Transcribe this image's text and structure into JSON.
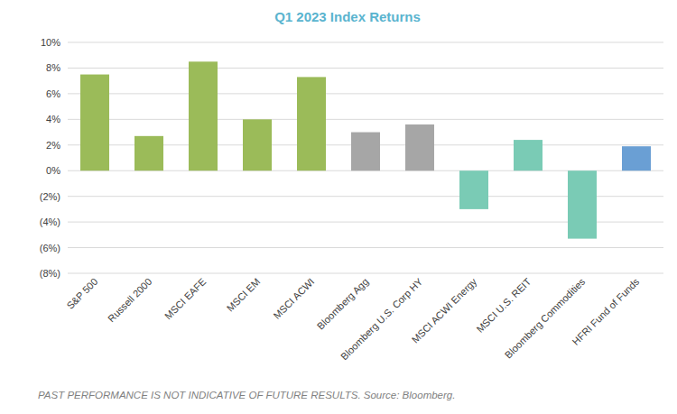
{
  "chart_data": {
    "type": "bar",
    "title": "Q1 2023 Index Returns",
    "note": "PAST PERFORMANCE IS NOT INDICATIVE OF FUTURE RESULTS. Source: Bloomberg.",
    "categories": [
      "S&P 500",
      "Russell 2000",
      "MSCI EAFE",
      "MSCI EM",
      "MSCI ACWI",
      "Bloomberg Agg",
      "Bloomberg U.S. Corp HY",
      "MSCI ACWI Energy",
      "MSCI U.S. REIT",
      "Bloomberg Commodities",
      "HFRI Fund of Funds"
    ],
    "values": [
      7.5,
      2.7,
      8.5,
      4.0,
      7.3,
      3.0,
      3.6,
      -3.0,
      2.4,
      -5.3,
      1.9
    ],
    "colors": [
      "#9bbb59",
      "#9bbb59",
      "#9bbb59",
      "#9bbb59",
      "#9bbb59",
      "#a6a6a6",
      "#a6a6a6",
      "#7acbb5",
      "#7acbb5",
      "#7acbb5",
      "#6a9fd4"
    ],
    "ylim": [
      -8,
      10
    ],
    "yticks": [
      {
        "value": -8,
        "label": "(8%)"
      },
      {
        "value": -6,
        "label": "(6%)"
      },
      {
        "value": -4,
        "label": "(4%)"
      },
      {
        "value": -2,
        "label": "(2%)"
      },
      {
        "value": 0,
        "label": "0%"
      },
      {
        "value": 2,
        "label": "2%"
      },
      {
        "value": 4,
        "label": "4%"
      },
      {
        "value": 6,
        "label": "6%"
      },
      {
        "value": 8,
        "label": "8%"
      },
      {
        "value": 10,
        "label": "10%"
      }
    ],
    "grid": true,
    "data_labels": false
  }
}
